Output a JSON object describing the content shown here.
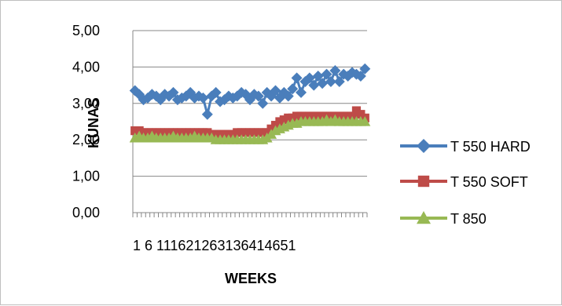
{
  "chart_data": {
    "type": "line",
    "title": "",
    "xlabel": "WEEKS",
    "ylabel": "KUNAS",
    "ylim": [
      0,
      5
    ],
    "yticks": [
      "0,00",
      "1,00",
      "2,00",
      "3,00",
      "4,00",
      "5,00"
    ],
    "x": [
      1,
      2,
      3,
      4,
      5,
      6,
      7,
      8,
      9,
      10,
      11,
      12,
      13,
      14,
      15,
      16,
      17,
      18,
      19,
      20,
      21,
      22,
      23,
      24,
      25,
      26,
      27,
      28,
      29,
      30,
      31,
      32,
      33,
      34,
      35,
      36,
      37,
      38,
      39,
      40,
      41,
      42,
      43,
      44,
      45,
      46,
      47,
      48,
      49,
      50,
      51,
      52,
      53,
      54,
      55
    ],
    "x_tick_labels": [
      "1",
      "6",
      "11",
      "16",
      "21",
      "26",
      "31",
      "36",
      "41",
      "46",
      "51"
    ],
    "x_tick_label_string": "1 6 111621263136414651",
    "grid": "horizontal",
    "legend_position": "right",
    "series": [
      {
        "name": "T 550 HARD",
        "color": "#4a7ebb",
        "marker": "diamond",
        "values": [
          3.35,
          3.25,
          3.1,
          3.15,
          3.25,
          3.2,
          3.1,
          3.25,
          3.2,
          3.3,
          3.1,
          3.15,
          3.2,
          3.3,
          3.15,
          3.2,
          3.15,
          2.7,
          3.2,
          3.3,
          3.05,
          3.1,
          3.2,
          3.15,
          3.2,
          3.3,
          3.25,
          3.1,
          3.25,
          3.2,
          3.0,
          3.3,
          3.2,
          3.35,
          3.15,
          3.3,
          3.2,
          3.4,
          3.7,
          3.3,
          3.6,
          3.7,
          3.5,
          3.75,
          3.55,
          3.8,
          3.6,
          3.9,
          3.6,
          3.8,
          3.75,
          3.85,
          3.8,
          3.75,
          3.95
        ]
      },
      {
        "name": "T 550 SOFT",
        "color": "#be4b48",
        "marker": "square",
        "values": [
          2.25,
          2.25,
          2.2,
          2.2,
          2.2,
          2.2,
          2.2,
          2.2,
          2.2,
          2.2,
          2.2,
          2.2,
          2.2,
          2.2,
          2.2,
          2.2,
          2.2,
          2.2,
          2.15,
          2.15,
          2.15,
          2.15,
          2.15,
          2.15,
          2.2,
          2.2,
          2.2,
          2.2,
          2.2,
          2.2,
          2.2,
          2.2,
          2.3,
          2.4,
          2.5,
          2.55,
          2.6,
          2.6,
          2.65,
          2.65,
          2.65,
          2.65,
          2.65,
          2.65,
          2.65,
          2.65,
          2.65,
          2.65,
          2.65,
          2.65,
          2.65,
          2.65,
          2.8,
          2.7,
          2.6
        ]
      },
      {
        "name": "T 850",
        "color": "#98b954",
        "marker": "triangle",
        "values": [
          2.05,
          2.1,
          2.05,
          2.05,
          2.1,
          2.05,
          2.05,
          2.05,
          2.05,
          2.1,
          2.05,
          2.05,
          2.05,
          2.05,
          2.1,
          2.05,
          2.05,
          2.05,
          2.05,
          2.0,
          2.0,
          2.0,
          2.0,
          2.0,
          2.0,
          2.0,
          2.0,
          2.0,
          2.0,
          2.0,
          2.0,
          2.05,
          2.15,
          2.25,
          2.3,
          2.35,
          2.4,
          2.45,
          2.45,
          2.5,
          2.5,
          2.5,
          2.5,
          2.5,
          2.5,
          2.55,
          2.5,
          2.55,
          2.5,
          2.5,
          2.5,
          2.5,
          2.5,
          2.5,
          2.5
        ]
      }
    ]
  }
}
